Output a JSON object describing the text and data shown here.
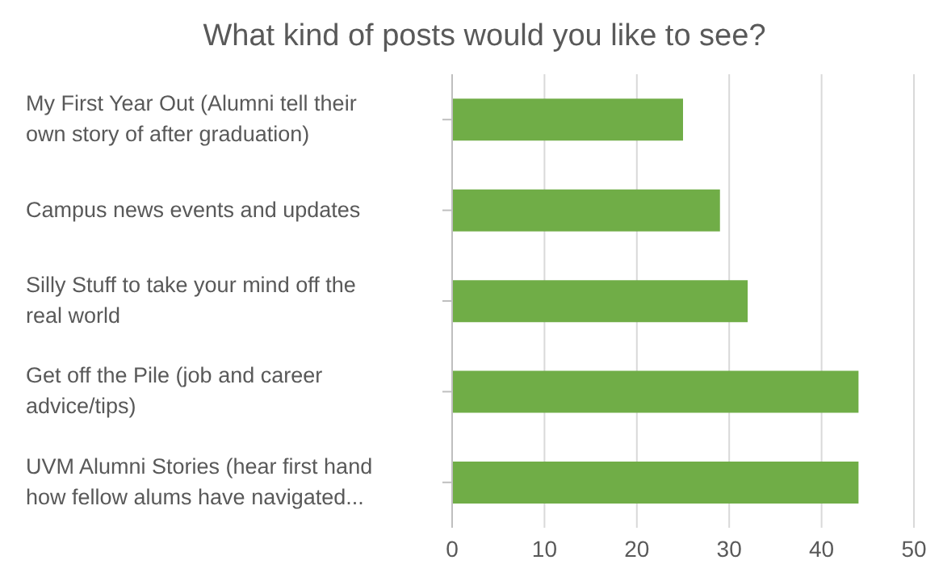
{
  "chart_data": {
    "type": "bar",
    "orientation": "horizontal",
    "title": "What kind of posts would you like to see?",
    "categories": [
      "My First Year Out (Alumni tell their own story of after graduation)",
      "Campus news events and updates",
      "Silly Stuff to take your mind off the real world",
      "Get off the Pile (job and career advice/tips)",
      "UVM Alumni Stories (hear first hand how fellow alums have navigated..."
    ],
    "values": [
      25,
      29,
      32,
      44,
      44
    ],
    "color": "#70ad47",
    "xlim": [
      0,
      50
    ],
    "xticks": [
      0,
      10,
      20,
      30,
      40,
      50
    ],
    "grid": "x"
  }
}
